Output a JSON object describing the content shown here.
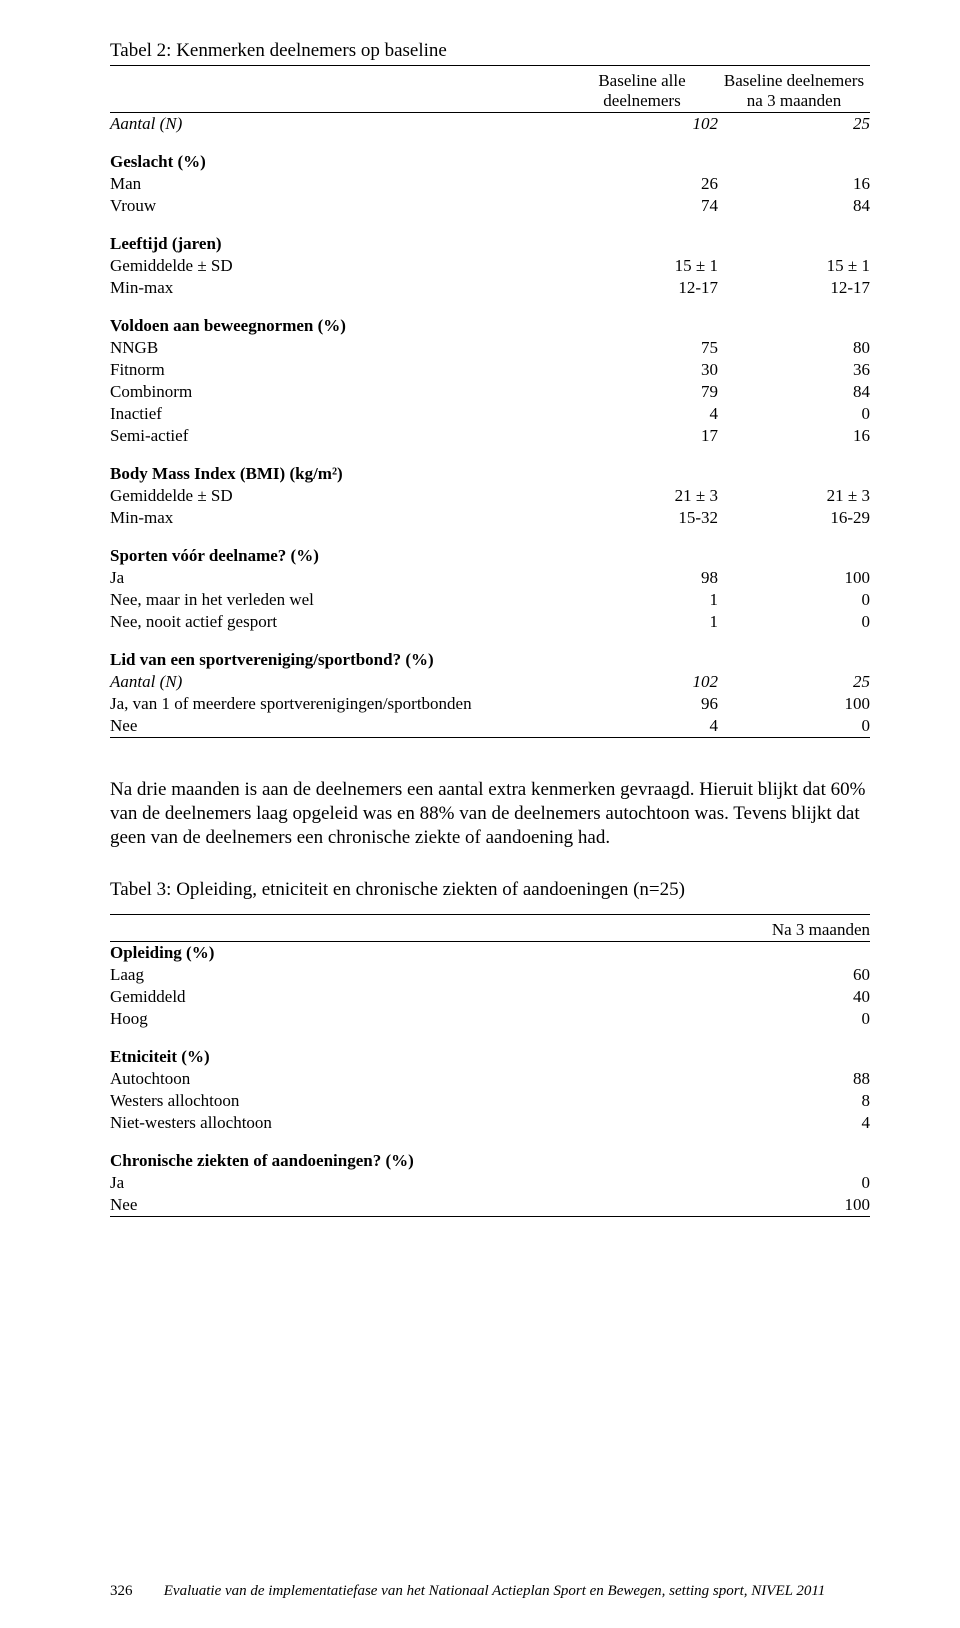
{
  "table2": {
    "caption": "Tabel 2:   Kenmerken deelnemers op baseline",
    "col_headers": [
      "Baseline alle deelnemers",
      "Baseline deelnemers na 3 maanden"
    ],
    "rows": [
      {
        "label": "Aantal (N)",
        "v1": "102",
        "v2": "25",
        "italic": true
      },
      {
        "blank": true
      },
      {
        "label": "Geslacht (%)",
        "bold": true
      },
      {
        "label": "Man",
        "v1": "26",
        "v2": "16"
      },
      {
        "label": "Vrouw",
        "v1": "74",
        "v2": "84"
      },
      {
        "blank": true
      },
      {
        "label": "Leeftijd (jaren)",
        "bold": true
      },
      {
        "label": "Gemiddelde ± SD",
        "v1": "15 ± 1",
        "v2": "15 ± 1"
      },
      {
        "label": "Min-max",
        "v1": "12-17",
        "v2": "12-17"
      },
      {
        "blank": true
      },
      {
        "label": "Voldoen aan beweegnormen (%)",
        "bold": true
      },
      {
        "label": "NNGB",
        "v1": "75",
        "v2": "80"
      },
      {
        "label": "Fitnorm",
        "v1": "30",
        "v2": "36"
      },
      {
        "label": "Combinorm",
        "v1": "79",
        "v2": "84"
      },
      {
        "label": "Inactief",
        "v1": "4",
        "v2": "0"
      },
      {
        "label": "Semi-actief",
        "v1": "17",
        "v2": "16"
      },
      {
        "blank": true
      },
      {
        "label": "Body Mass Index (BMI) (kg/m²)",
        "bold": true
      },
      {
        "label": "Gemiddelde ± SD",
        "v1": "21 ± 3",
        "v2": "21 ± 3"
      },
      {
        "label": "Min-max",
        "v1": "15-32",
        "v2": "16-29"
      },
      {
        "blank": true
      },
      {
        "label": "Sporten vóór deelname? (%)",
        "bold": true
      },
      {
        "label": "Ja",
        "v1": "98",
        "v2": "100"
      },
      {
        "label": "Nee, maar in het verleden wel",
        "v1": "1",
        "v2": "0"
      },
      {
        "label": "Nee, nooit actief gesport",
        "v1": "1",
        "v2": "0"
      },
      {
        "blank": true
      },
      {
        "label": "Lid van een sportvereniging/sportbond? (%)",
        "bold": true
      },
      {
        "label": "Aantal (N)",
        "v1": "102",
        "v2": "25",
        "italic": true
      },
      {
        "label": "Ja, van 1 of meerdere sportverenigingen/sportbonden",
        "v1": "96",
        "v2": "100"
      },
      {
        "label": "Nee",
        "v1": "4",
        "v2": "0"
      }
    ]
  },
  "paragraph": "Na drie maanden is aan de deelnemers een aantal extra kenmerken gevraagd. Hieruit blijkt dat 60% van de deelnemers laag opgeleid was en 88% van de deelnemers autochtoon was. Tevens blijkt dat geen van de deelnemers een chronische ziekte of aandoening had.",
  "table3": {
    "caption": "Tabel 3: Opleiding, etniciteit en chronische ziekten of aandoeningen (n=25)",
    "col_header": "Na 3 maanden",
    "rows": [
      {
        "label": "Opleiding (%)",
        "bold": true
      },
      {
        "label": "Laag",
        "v": "60"
      },
      {
        "label": "Gemiddeld",
        "v": "40"
      },
      {
        "label": "Hoog",
        "v": "0"
      },
      {
        "blank": true
      },
      {
        "label": "Etniciteit (%)",
        "bold": true
      },
      {
        "label": "Autochtoon",
        "v": "88"
      },
      {
        "label": "Westers allochtoon",
        "v": "8"
      },
      {
        "label": "Niet-westers allochtoon",
        "v": "4"
      },
      {
        "blank": true
      },
      {
        "label": "Chronische ziekten of aandoeningen? (%)",
        "bold": true
      },
      {
        "label": "Ja",
        "v": "0"
      },
      {
        "label": "Nee",
        "v": "100"
      }
    ]
  },
  "footer": {
    "page": "326",
    "text": "Evaluatie van de implementatiefase van het Nationaal Actieplan Sport en Bewegen, setting sport, NIVEL 2011"
  }
}
